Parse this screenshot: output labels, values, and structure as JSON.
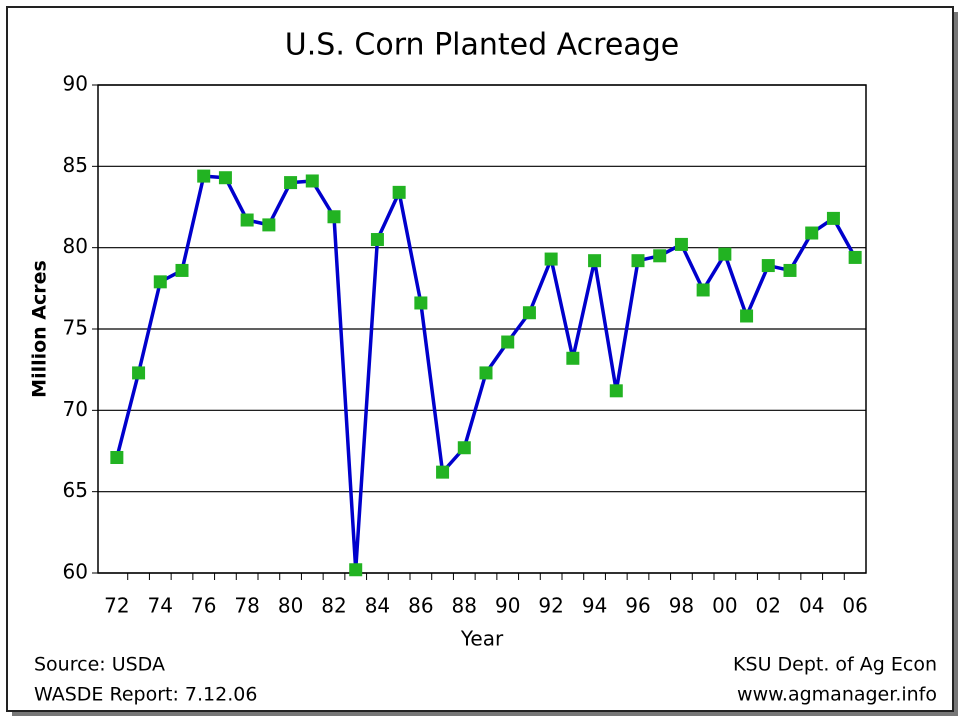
{
  "chart_data": {
    "type": "line",
    "title": "U.S. Corn Planted Acreage",
    "x_label": "Year",
    "y_label": "Million Acres",
    "annotations": [
      "Source:  USDA",
      "WASDE Report:  7.12.06",
      "KSU Dept. of Ag Econ",
      "www.agmanager.info"
    ],
    "categories": [
      "72",
      null,
      "74",
      null,
      "76",
      null,
      "78",
      null,
      "80",
      null,
      "82",
      null,
      "84",
      null,
      "86",
      null,
      "88",
      null,
      "90",
      null,
      "92",
      null,
      "94",
      null,
      "96",
      null,
      "98",
      null,
      "00",
      null,
      "02",
      null,
      "04",
      null,
      "06"
    ],
    "series": [
      {
        "name": "Corn Planted Acreage",
        "color": "#0000cc",
        "marker_color": "#22b322",
        "values": [
          67.1,
          72.3,
          77.9,
          78.6,
          84.4,
          84.3,
          81.7,
          81.4,
          84.0,
          84.1,
          81.9,
          60.2,
          80.5,
          83.4,
          76.6,
          66.2,
          67.7,
          72.3,
          74.2,
          76.0,
          79.3,
          73.2,
          79.2,
          71.2,
          79.2,
          79.5,
          80.2,
          77.4,
          79.6,
          75.8,
          78.9,
          78.6,
          80.9,
          81.8,
          79.4
        ]
      }
    ],
    "ylim": [
      60,
      90
    ],
    "yticks": [
      60,
      65,
      70,
      75,
      80,
      85,
      90
    ],
    "grid": true
  }
}
